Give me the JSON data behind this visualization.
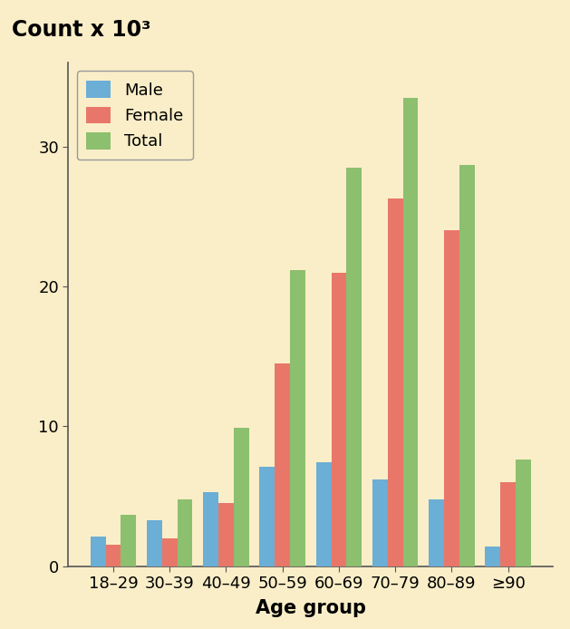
{
  "categories": [
    "18–29",
    "30–39",
    "40–49",
    "50–59",
    "60–69",
    "70–79",
    "80–89",
    "≥90"
  ],
  "male": [
    2.1,
    3.3,
    5.3,
    7.1,
    7.4,
    6.2,
    4.8,
    1.4
  ],
  "female": [
    1.5,
    2.0,
    4.5,
    14.5,
    21.0,
    26.3,
    24.0,
    6.0
  ],
  "total": [
    3.7,
    4.8,
    9.9,
    21.2,
    28.5,
    33.5,
    28.7,
    7.6
  ],
  "male_color": "#6baed6",
  "female_color": "#e8776a",
  "total_color": "#8cbf6e",
  "bg_color": "#faeec8",
  "fig_bg_color": "#faeec8",
  "ylabel": "Count x 10³",
  "xlabel": "Age group",
  "ylim": [
    0,
    36
  ],
  "yticks": [
    0,
    10,
    20,
    30
  ],
  "legend_labels": [
    "Male",
    "Female",
    "Total"
  ],
  "bar_width": 0.27,
  "title_fontsize": 17,
  "axis_fontsize": 15,
  "tick_fontsize": 13,
  "legend_fontsize": 13
}
